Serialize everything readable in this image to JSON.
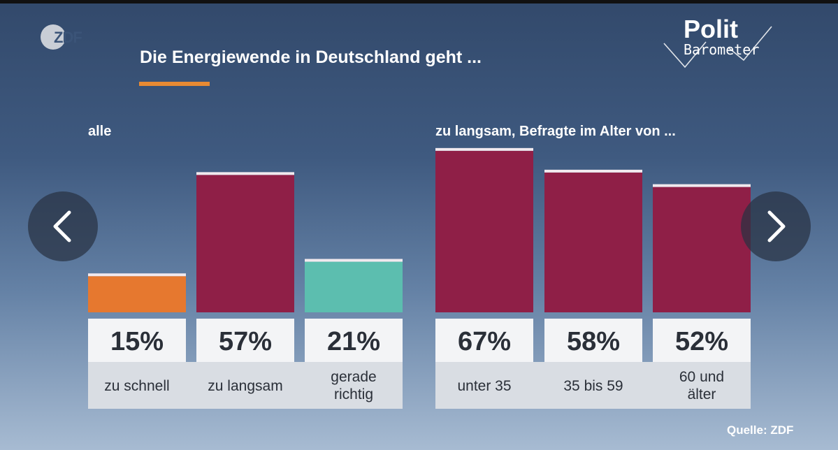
{
  "header": {
    "broadcaster_logo_text": "ZDF",
    "title": "Die Energiewende in Deutschland geht ...",
    "brand_line1": "Polit",
    "brand_line2": "Barometer"
  },
  "colors": {
    "zu_schnell": "#e6782f",
    "zu_langsam": "#8f1f47",
    "gerade_richtig": "#5cbeaf",
    "title_underline": "#e88a33"
  },
  "chart_data": [
    {
      "type": "bar",
      "group_label": "alle",
      "categories": [
        "zu schnell",
        "zu langsam",
        "gerade richtig"
      ],
      "values": [
        15,
        57,
        21
      ],
      "value_labels": [
        "15%",
        "57%",
        "21%"
      ],
      "unit": "%",
      "colors": [
        "#e6782f",
        "#8f1f47",
        "#5cbeaf"
      ]
    },
    {
      "type": "bar",
      "group_label": "zu langsam, Befragte im Alter von ...",
      "categories": [
        "unter 35",
        "35 bis 59",
        "60 und älter"
      ],
      "values": [
        67,
        58,
        52
      ],
      "value_labels": [
        "67%",
        "58%",
        "52%"
      ],
      "unit": "%",
      "colors": [
        "#8f1f47",
        "#8f1f47",
        "#8f1f47"
      ]
    }
  ],
  "source": "Quelle: ZDF",
  "navigation": {
    "prev": "previous-slide",
    "next": "next-slide"
  }
}
